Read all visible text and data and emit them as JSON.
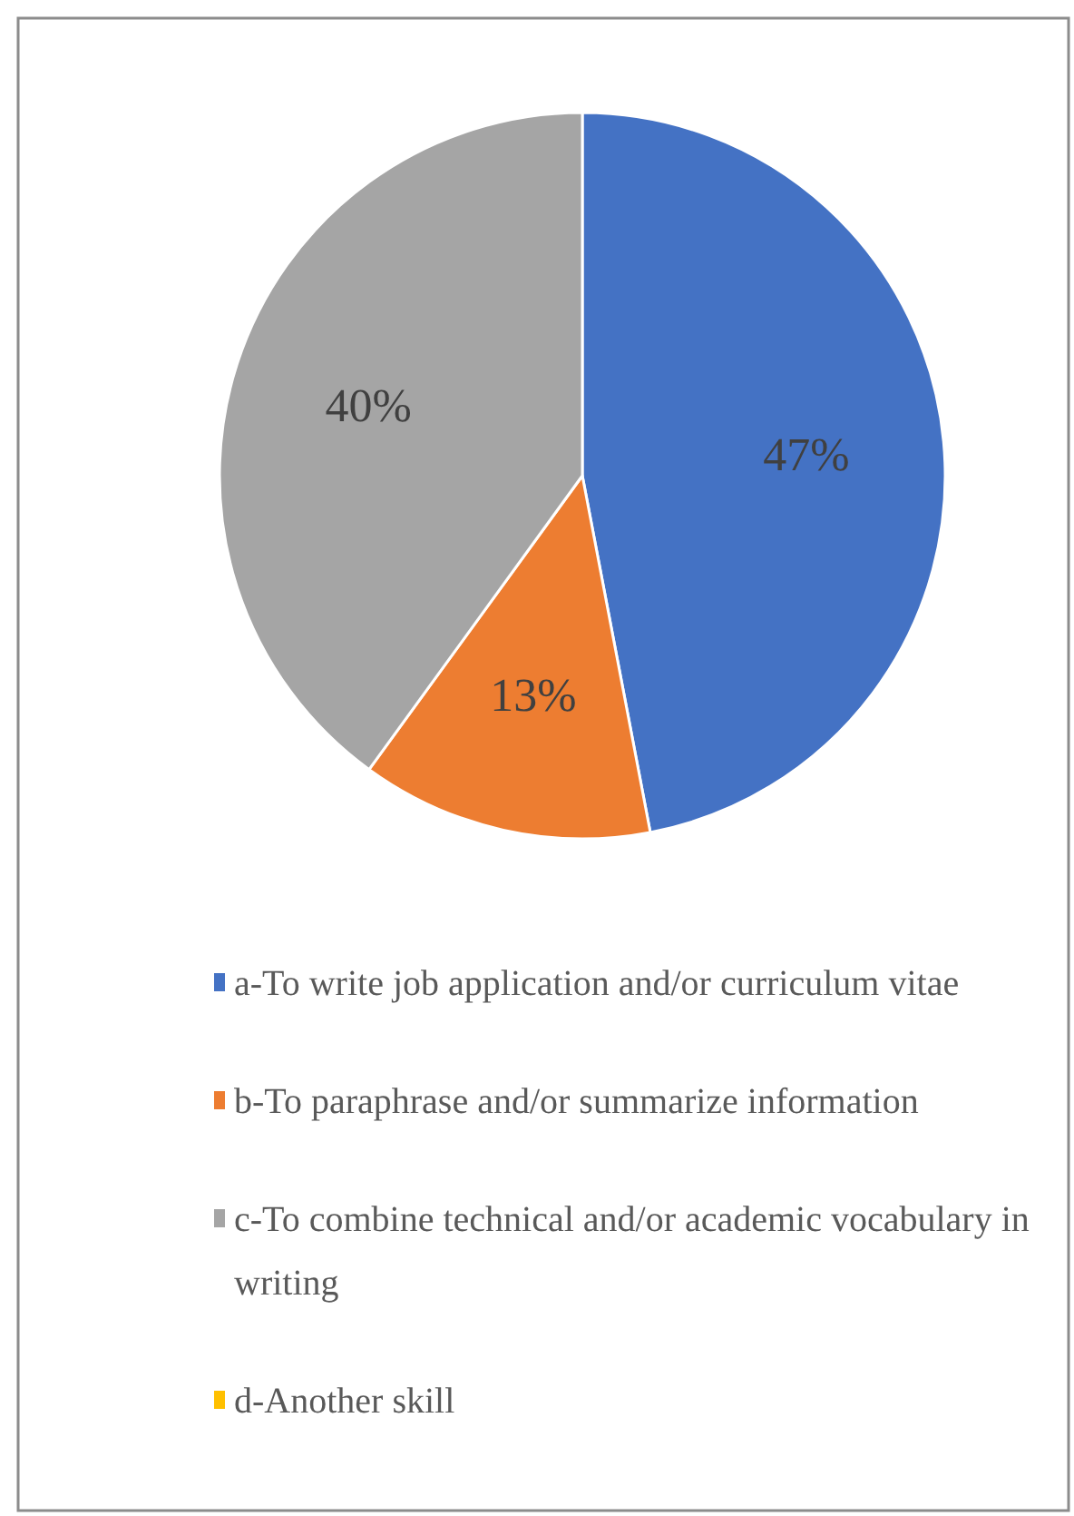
{
  "chart_data": {
    "type": "pie",
    "categories": [
      "a-To write job application and/or curriculum vitae",
      "b-To paraphrase and/or summarize information",
      "c-To combine technical and/or academic vocabulary in writing",
      "d-Another skill"
    ],
    "values": [
      47,
      13,
      40,
      0
    ],
    "colors": [
      "#4472c4",
      "#ed7d31",
      "#a5a5a5",
      "#ffc000"
    ],
    "value_labels": [
      "47%",
      "13%",
      "40%",
      null
    ],
    "legend": "bottom"
  }
}
